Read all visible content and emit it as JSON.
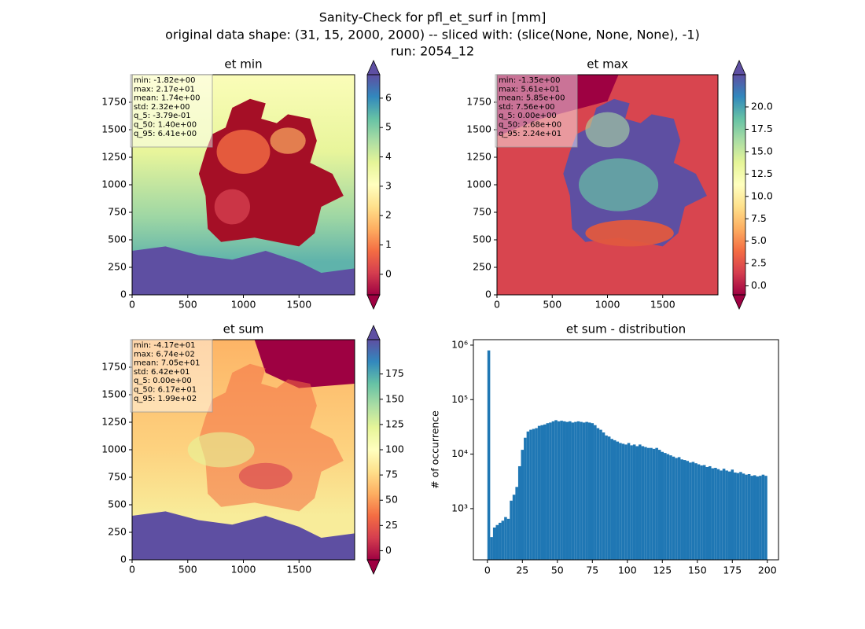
{
  "figure_title": [
    "Sanity-Check for pfl_et_surf in [mm]",
    "original data shape: (31, 15, 2000, 2000) -- sliced with: (slice(None, None, None), -1)",
    "run: 2054_12"
  ],
  "chart_data": [
    {
      "type": "heatmap",
      "title": "et min",
      "xlim": [
        0,
        2000
      ],
      "xticks": [
        0,
        500,
        1000,
        1500
      ],
      "ylim": [
        0,
        2000
      ],
      "yticks": [
        0,
        250,
        500,
        750,
        1000,
        1250,
        1500,
        1750
      ],
      "clim": [
        -0.7,
        6.8
      ],
      "cticks": [
        0,
        1,
        2,
        3,
        4,
        5,
        6
      ],
      "stats": [
        "min: -1.82e+00",
        "max: 2.17e+01",
        "mean: 1.74e+00",
        "std: 2.32e+00",
        "q_5: -3.79e-01",
        "q_50: 1.40e+00",
        "q_95: 6.41e+00"
      ]
    },
    {
      "type": "heatmap",
      "title": "et max",
      "xlim": [
        0,
        2000
      ],
      "xticks": [
        0,
        500,
        1000,
        1500
      ],
      "ylim": [
        0,
        2000
      ],
      "yticks": [
        0,
        250,
        500,
        750,
        1000,
        1250,
        1500,
        1750
      ],
      "clim": [
        -1,
        23.6
      ],
      "cticks": [
        {
          "value": 0,
          "label": "0.0"
        },
        {
          "value": 2.5,
          "label": "2.5"
        },
        {
          "value": 5,
          "label": "5.0"
        },
        {
          "value": 7.5,
          "label": "7.5"
        },
        {
          "value": 10,
          "label": "10.0"
        },
        {
          "value": 12.5,
          "label": "12.5"
        },
        {
          "value": 15,
          "label": "15.0"
        },
        {
          "value": 17.5,
          "label": "17.5"
        },
        {
          "value": 20,
          "label": "20.0"
        }
      ],
      "stats": [
        "min: -1.35e+00",
        "max: 5.61e+01",
        "mean: 5.85e+00",
        "std: 7.56e+00",
        "q_5: 0.00e+00",
        "q_50: 2.68e+00",
        "q_95: 2.24e+01"
      ]
    },
    {
      "type": "heatmap",
      "title": "et sum",
      "xlim": [
        0,
        2000
      ],
      "xticks": [
        0,
        500,
        1000,
        1500
      ],
      "ylim": [
        0,
        2000
      ],
      "yticks": [
        0,
        250,
        500,
        750,
        1000,
        1250,
        1500,
        1750
      ],
      "clim": [
        -9,
        209
      ],
      "cticks": [
        0,
        25,
        50,
        75,
        100,
        125,
        150,
        175
      ],
      "stats": [
        "min: -4.17e+01",
        "max: 6.74e+02",
        "mean: 7.05e+01",
        "std: 6.42e+01",
        "q_5: 0.00e+00",
        "q_50: 6.17e+01",
        "q_95: 1.99e+02"
      ]
    },
    {
      "type": "histogram",
      "title": "et sum - distribution",
      "ylabel": "# of occurrence",
      "color": "#1f77b4",
      "yscale": "log",
      "xlim": [
        -10,
        208
      ],
      "xticks": [
        0,
        25,
        50,
        75,
        100,
        125,
        150,
        175,
        200
      ],
      "ylim": [
        115,
        1260000
      ],
      "yticks": [
        {
          "value": 1000,
          "label": "10³"
        },
        {
          "value": 10000,
          "label": "10⁴"
        },
        {
          "value": 100000,
          "label": "10⁵"
        },
        {
          "value": 1000000,
          "label": "10⁶"
        }
      ],
      "bins": [
        0,
        2,
        4,
        6,
        8,
        10,
        12,
        14,
        16,
        18,
        20,
        22,
        24,
        26,
        28,
        30,
        32,
        34,
        36,
        38,
        40,
        42,
        44,
        46,
        48,
        50,
        52,
        54,
        56,
        58,
        60,
        62,
        64,
        66,
        68,
        70,
        72,
        74,
        76,
        78,
        80,
        82,
        84,
        86,
        88,
        90,
        92,
        94,
        96,
        98,
        100,
        102,
        104,
        106,
        108,
        110,
        112,
        114,
        116,
        118,
        120,
        122,
        124,
        126,
        128,
        130,
        132,
        134,
        136,
        138,
        140,
        142,
        144,
        146,
        148,
        150,
        152,
        154,
        156,
        158,
        160,
        162,
        164,
        166,
        168,
        170,
        172,
        174,
        176,
        178,
        180,
        182,
        184,
        186,
        188,
        190,
        192,
        194,
        196,
        198,
        200
      ],
      "values": [
        800000,
        300,
        450,
        500,
        550,
        600,
        700,
        650,
        1400,
        1800,
        2500,
        6000,
        12000,
        20000,
        26000,
        28000,
        29000,
        30000,
        33000,
        34000,
        35000,
        37000,
        38000,
        40000,
        42000,
        40000,
        41000,
        40000,
        39000,
        40000,
        38000,
        39000,
        40000,
        39000,
        38000,
        39000,
        38000,
        37000,
        34000,
        30000,
        28000,
        25000,
        22000,
        21000,
        19000,
        18000,
        17000,
        16000,
        15500,
        15000,
        16000,
        14500,
        15000,
        14000,
        15000,
        14000,
        13500,
        13000,
        13000,
        12500,
        13000,
        12000,
        11000,
        10500,
        10000,
        9500,
        9000,
        8500,
        8800,
        8000,
        7800,
        7500,
        7000,
        7200,
        6800,
        6500,
        6200,
        6300,
        5800,
        6000,
        5500,
        5600,
        5300,
        5000,
        5400,
        5000,
        4800,
        5200,
        4600,
        4500,
        4700,
        4400,
        4200,
        4300,
        4000,
        4100,
        3900,
        4000,
        4200,
        4000
      ]
    }
  ]
}
